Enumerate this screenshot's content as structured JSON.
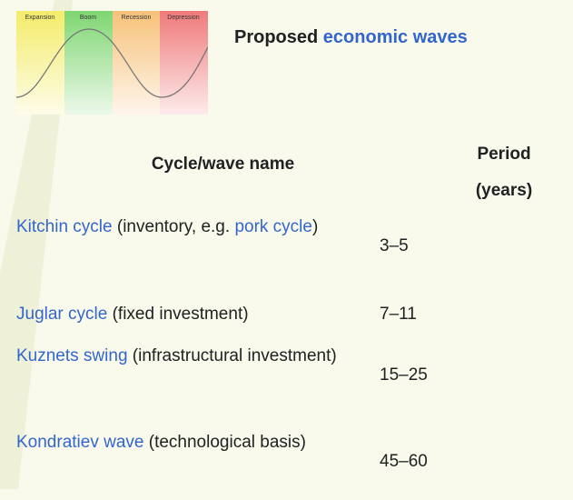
{
  "header": {
    "image_labels": [
      "Expansion",
      "Boom",
      "Recession",
      "Depression"
    ],
    "title": [
      {
        "text": "Proposed "
      },
      {
        "text": "economic waves",
        "link": true
      }
    ]
  },
  "table": {
    "columns": [
      "Cycle/wave name",
      "Period",
      "(years)"
    ],
    "rows": [
      {
        "name": [
          {
            "text": "Kitchin cycle",
            "link": true
          },
          {
            "text": " (inventory, e.g. "
          },
          {
            "text": "pork cycle",
            "link": true
          },
          {
            "text": ")"
          }
        ],
        "period": "3–5"
      },
      {
        "name": [
          {
            "text": "Juglar cycle",
            "link": true
          },
          {
            "text": " (fixed investment)"
          }
        ],
        "period": "7–11"
      },
      {
        "name": [
          {
            "text": "Kuznets swing",
            "link": true
          },
          {
            "text": " (infrastructural investment)"
          }
        ],
        "period": "15–25"
      },
      {
        "name": [
          {
            "text": "Kondratiev wave",
            "link": true
          },
          {
            "text": " (technological basis)"
          }
        ],
        "period": "45–60"
      }
    ]
  }
}
